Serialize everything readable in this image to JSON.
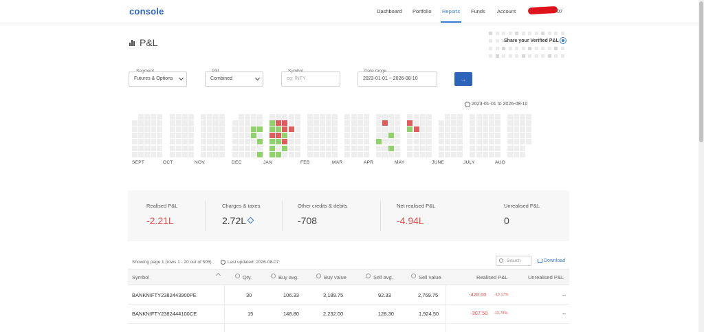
{
  "header": {
    "logo": "console",
    "nav": [
      "Dashboard",
      "Portfolio",
      "Reports",
      "Funds",
      "Account"
    ],
    "active_nav": "Reports",
    "user_id_suffix": "07"
  },
  "page": {
    "title": "P&L",
    "share_label": "Share your Verified P&L"
  },
  "filters": {
    "segment": {
      "label": "Segment",
      "value": "Futures & Options"
    },
    "pnl": {
      "label": "P&L",
      "value": "Combined"
    },
    "symbol": {
      "label": "Symbol",
      "placeholder": "eg: INFY"
    },
    "date_range": {
      "label": "Date range",
      "value": "2023-01-01 ~ 2026-08-10"
    },
    "submit_icon": "arrow-right-icon"
  },
  "heatmap": {
    "range_note": "2023-01-01 to 2026-08-10",
    "months": [
      "SEPT",
      "OCT",
      "NOV",
      "DEC",
      "JAN",
      "FEB",
      "MAR",
      "APR",
      "MAY",
      "JUNE",
      "JULY",
      "AUG"
    ],
    "colors": {
      "empty": "#eeeeee",
      "profit": "#8fd16a",
      "loss": "#e05c5c"
    }
  },
  "summary": {
    "items": [
      {
        "label": "Realised P&L",
        "value": "-2.21L",
        "negative": true
      },
      {
        "label": "Charges & taxes",
        "value": "2.72L",
        "negative": false
      },
      {
        "label": "Other credits & debits",
        "value": "-708",
        "negative": false
      },
      {
        "label": "Net realised P&L",
        "value": "-4.94L",
        "negative": true
      },
      {
        "label": "Unrealised P&L",
        "value": "0",
        "negative": false
      }
    ]
  },
  "table": {
    "showing": "Showing page 1 (rows 1 - 20 out of 505)",
    "updated": "Last updated: 2026-08-07",
    "search_placeholder": "Search",
    "download_label": "Download",
    "headers": [
      "Symbol",
      "Qty.",
      "Buy avg.",
      "Buy value",
      "Sell avg.",
      "Sell value",
      "Realised P&L",
      "Unrealised P&L"
    ],
    "rows": [
      {
        "symbol": "BANKNIFTY2382443900PE",
        "qty": "30",
        "buy_avg": "106.33",
        "buy_value": "3,189.75",
        "sell_avg": "92.33",
        "sell_value": "2,769.75",
        "realised": "-420.00",
        "realised_pct": "-13.17%",
        "unrealised": "--"
      },
      {
        "symbol": "BANKNIFTY2382444100CE",
        "qty": "15",
        "buy_avg": "148.80",
        "buy_value": "2,232.00",
        "sell_avg": "128.30",
        "sell_value": "1,924.50",
        "realised": "-307.50",
        "realised_pct": "-13.78%",
        "unrealised": "--"
      }
    ]
  },
  "accent": "#387ed1",
  "negative_color": "#df514c"
}
